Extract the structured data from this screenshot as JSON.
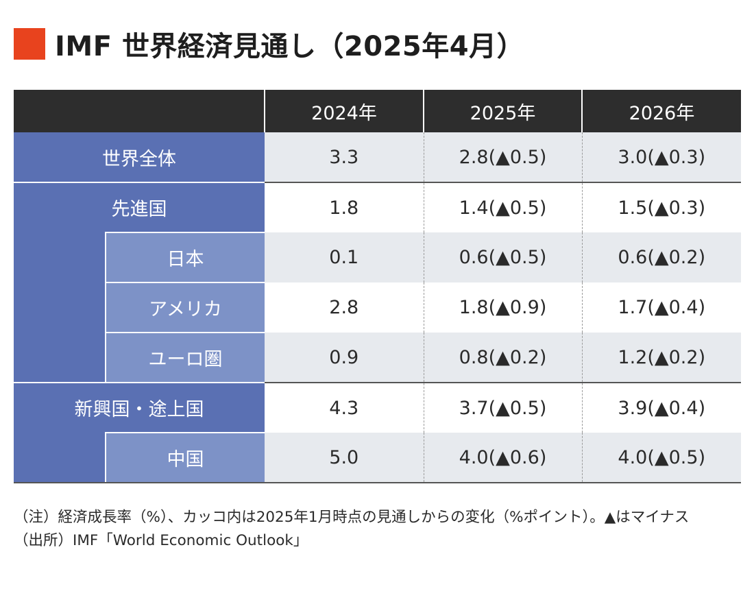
{
  "title": "IMF 世界経済見通し（2025年4月）",
  "colors": {
    "title_marker": "#e8431e",
    "header_bg": "#2d2d2d",
    "label_main": "#5a70b3",
    "label_sub": "#7d92c7",
    "row_shade": "#e7eaee"
  },
  "table": {
    "columns": [
      "2024年",
      "2025年",
      "2026年"
    ],
    "world": {
      "label": "世界全体",
      "values": [
        "3.3",
        "2.8(▲0.5)",
        "3.0(▲0.3)"
      ]
    },
    "advanced": {
      "label": "先進国",
      "values": [
        "1.8",
        "1.4(▲0.5)",
        "1.5(▲0.3)"
      ]
    },
    "japan": {
      "label": "日本",
      "values": [
        "0.1",
        "0.6(▲0.5)",
        "0.6(▲0.2)"
      ]
    },
    "usa": {
      "label": "アメリカ",
      "values": [
        "2.8",
        "1.8(▲0.9)",
        "1.7(▲0.4)"
      ]
    },
    "euro": {
      "label": "ユーロ圏",
      "values": [
        "0.9",
        "0.8(▲0.2)",
        "1.2(▲0.2)"
      ]
    },
    "emerging": {
      "label": "新興国・途上国",
      "values": [
        "4.3",
        "3.7(▲0.5)",
        "3.9(▲0.4)"
      ]
    },
    "china": {
      "label": "中国",
      "values": [
        "5.0",
        "4.0(▲0.6)",
        "4.0(▲0.5)"
      ]
    }
  },
  "notes": {
    "note_prefix": "（注）",
    "note_text": "経済成長率（%）、カッコ内は2025年1月時点の見通しからの変化（%ポイント）。▲はマイナス",
    "source_prefix": "（出所）",
    "source_text": "IMF「World Economic Outlook」"
  }
}
